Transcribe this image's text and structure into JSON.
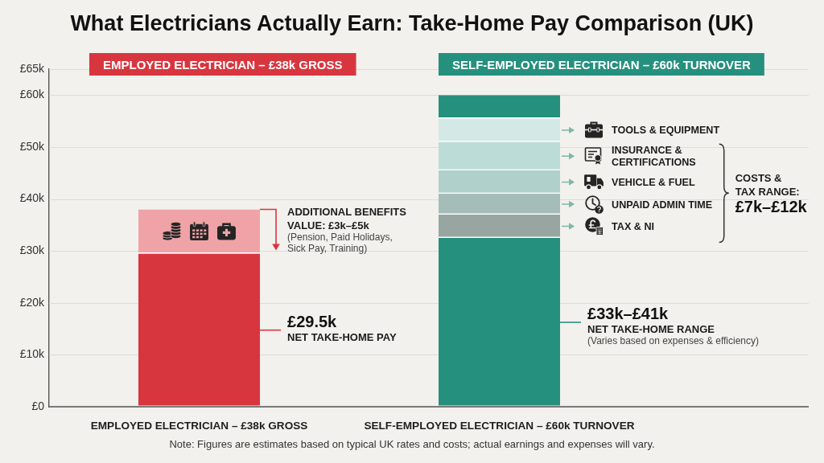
{
  "chart_data": {
    "type": "bar",
    "title": "What Electricians Actually Earn: Take-Home Pay Comparison (UK)",
    "categories": [
      "EMPLOYED ELECTRICIAN – £38k GROSS",
      "SELF-EMPLOYED ELECTRICIAN – £60k TURNOVER"
    ],
    "stacked": true,
    "series": [
      {
        "colors": [
          "#d8363f",
          "#26907e"
        ],
        "values": [
          29.5,
          32.5
        ]
      },
      {
        "color": "#f0a3a6",
        "values": [
          8.5,
          null
        ]
      },
      {
        "name": "TAX & NI",
        "color": "#98a6a1",
        "values": [
          null,
          4.5
        ]
      },
      {
        "name": "UNPAID ADMIN TIME",
        "color": "#a5bdb8",
        "values": [
          null,
          4
        ]
      },
      {
        "name": "VEHICLE & FUEL",
        "color": "#afd0cb",
        "values": [
          null,
          4.5
        ]
      },
      {
        "name": "INSURANCE & CERTIFICATIONS",
        "color": "#bcdcd7",
        "values": [
          null,
          5.5
        ]
      },
      {
        "name": "TOOLS & EQUIPMENT",
        "color": "#d3e9e6",
        "values": [
          null,
          4.5
        ]
      },
      {
        "color": "#26907e",
        "values": [
          null,
          4.5
        ]
      }
    ],
    "ylim": [
      0,
      65
    ],
    "yticks": [
      {
        "value": 0,
        "label": "£0"
      },
      {
        "value": 10,
        "label": "£10k"
      },
      {
        "value": 20,
        "label": "£20k"
      },
      {
        "value": 30,
        "label": "£30k"
      },
      {
        "value": 40,
        "label": "£40k"
      },
      {
        "value": 50,
        "label": "£50k"
      },
      {
        "value": 60,
        "label": "£60k"
      },
      {
        "value": 65,
        "label": "£65k"
      }
    ],
    "grid": "y",
    "annotations": [
      "ADDITIONAL BENEFITS VALUE: £3k–£5k",
      "(Pension, Paid Holidays, Sick Pay, Training)",
      "£29.5k",
      "NET TAKE-HOME PAY",
      "£33k–£41k",
      "NET TAKE-HOME RANGE",
      "(Varies based on expenses & efficiency)",
      "COSTS & TAX RANGE:",
      "£7k–£12k",
      "Note: Figures are estimates based on typical UK rates and costs; actual earnings and expenses will vary."
    ]
  }
}
